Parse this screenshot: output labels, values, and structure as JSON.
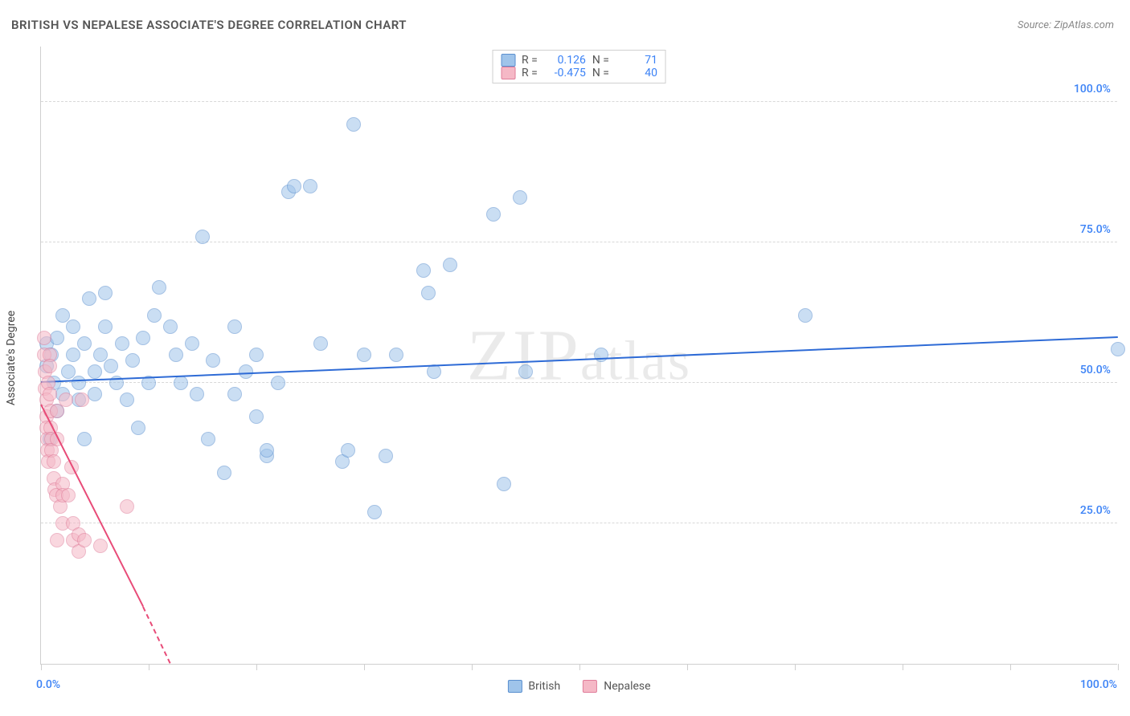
{
  "title": "BRITISH VS NEPALESE ASSOCIATE'S DEGREE CORRELATION CHART",
  "source_label": "Source:",
  "source_value": "ZipAtlas.com",
  "watermark": "ZIPatlas",
  "ylabel": "Associate's Degree",
  "chart": {
    "type": "scatter",
    "xlim": [
      0,
      100
    ],
    "ylim": [
      0,
      110
    ],
    "y_gridlines": [
      25,
      50,
      75,
      100
    ],
    "y_tick_labels": [
      "25.0%",
      "50.0%",
      "75.0%",
      "100.0%"
    ],
    "x_tick_positions": [
      0,
      10,
      20,
      30,
      40,
      50,
      60,
      70,
      80,
      90,
      100
    ],
    "x_min_label": "0.0%",
    "x_max_label": "100.0%",
    "axis_label_color": "#3b82f6",
    "grid_color": "#d8d8d8",
    "background_color": "#ffffff",
    "marker_radius": 9,
    "marker_opacity": 0.55,
    "series": [
      {
        "name": "British",
        "color_fill": "#9fc4ea",
        "color_stroke": "#5a8fcf",
        "R": "0.126",
        "N": "71",
        "trend": {
          "x1": 0,
          "y1": 50,
          "x2": 100,
          "y2": 58,
          "color": "#2e6bd6",
          "width": 2
        },
        "points": [
          [
            0.5,
            53
          ],
          [
            0.5,
            57
          ],
          [
            0.8,
            40
          ],
          [
            1,
            55
          ],
          [
            1.2,
            50
          ],
          [
            1.5,
            58
          ],
          [
            1.5,
            45
          ],
          [
            2,
            62
          ],
          [
            2,
            48
          ],
          [
            2.5,
            52
          ],
          [
            3,
            60
          ],
          [
            3,
            55
          ],
          [
            3.5,
            50
          ],
          [
            3.5,
            47
          ],
          [
            4,
            57
          ],
          [
            4,
            40
          ],
          [
            4.5,
            65
          ],
          [
            5,
            52
          ],
          [
            5,
            48
          ],
          [
            5.5,
            55
          ],
          [
            6,
            66
          ],
          [
            6,
            60
          ],
          [
            6.5,
            53
          ],
          [
            7,
            50
          ],
          [
            7.5,
            57
          ],
          [
            8,
            47
          ],
          [
            8.5,
            54
          ],
          [
            9,
            42
          ],
          [
            9.5,
            58
          ],
          [
            10,
            50
          ],
          [
            10.5,
            62
          ],
          [
            11,
            67
          ],
          [
            12,
            60
          ],
          [
            12.5,
            55
          ],
          [
            13,
            50
          ],
          [
            14,
            57
          ],
          [
            14.5,
            48
          ],
          [
            15,
            76
          ],
          [
            15.5,
            40
          ],
          [
            16,
            54
          ],
          [
            17,
            34
          ],
          [
            18,
            60
          ],
          [
            18,
            48
          ],
          [
            19,
            52
          ],
          [
            20,
            44
          ],
          [
            20,
            55
          ],
          [
            21,
            37
          ],
          [
            21,
            38
          ],
          [
            22,
            50
          ],
          [
            23,
            84
          ],
          [
            23.5,
            85
          ],
          [
            25,
            85
          ],
          [
            26,
            57
          ],
          [
            28,
            36
          ],
          [
            28.5,
            38
          ],
          [
            29,
            96
          ],
          [
            30,
            55
          ],
          [
            31,
            27
          ],
          [
            32,
            37
          ],
          [
            33,
            55
          ],
          [
            35.5,
            70
          ],
          [
            36,
            66
          ],
          [
            36.5,
            52
          ],
          [
            38,
            71
          ],
          [
            42,
            80
          ],
          [
            43,
            32
          ],
          [
            44.5,
            83
          ],
          [
            45,
            52
          ],
          [
            52,
            55
          ],
          [
            71,
            62
          ],
          [
            100,
            56
          ]
        ]
      },
      {
        "name": "Nepalese",
        "color_fill": "#f5b8c6",
        "color_stroke": "#e07d9a",
        "R": "-0.475",
        "N": "40",
        "trend_solid": {
          "x1": 0,
          "y1": 46,
          "x2": 9.5,
          "y2": 10,
          "color": "#e84b78",
          "width": 2
        },
        "trend_dashed": {
          "x1": 9.5,
          "y1": 10,
          "x2": 12,
          "y2": 0,
          "color": "#e84b78",
          "width": 2
        },
        "points": [
          [
            0.3,
            58
          ],
          [
            0.3,
            55
          ],
          [
            0.4,
            52
          ],
          [
            0.4,
            49
          ],
          [
            0.5,
            47
          ],
          [
            0.5,
            44
          ],
          [
            0.5,
            42
          ],
          [
            0.6,
            40
          ],
          [
            0.6,
            38
          ],
          [
            0.7,
            36
          ],
          [
            0.7,
            50
          ],
          [
            0.8,
            55
          ],
          [
            0.8,
            53
          ],
          [
            0.8,
            48
          ],
          [
            0.9,
            45
          ],
          [
            0.9,
            42
          ],
          [
            1.0,
            40
          ],
          [
            1.0,
            38
          ],
          [
            1.2,
            36
          ],
          [
            1.2,
            33
          ],
          [
            1.3,
            31
          ],
          [
            1.4,
            30
          ],
          [
            1.5,
            40
          ],
          [
            1.5,
            45
          ],
          [
            1.5,
            22
          ],
          [
            1.8,
            28
          ],
          [
            2.0,
            32
          ],
          [
            2.0,
            30
          ],
          [
            2.0,
            25
          ],
          [
            2.3,
            47
          ],
          [
            2.5,
            30
          ],
          [
            2.8,
            35
          ],
          [
            3.0,
            22
          ],
          [
            3.0,
            25
          ],
          [
            3.5,
            20
          ],
          [
            3.5,
            23
          ],
          [
            3.8,
            47
          ],
          [
            4.0,
            22
          ],
          [
            5.5,
            21
          ],
          [
            8.0,
            28
          ]
        ]
      }
    ]
  },
  "stats_legend": [
    {
      "swatch_fill": "#9fc4ea",
      "swatch_stroke": "#5a8fcf",
      "R": "0.126",
      "N": "71"
    },
    {
      "swatch_fill": "#f5b8c6",
      "swatch_stroke": "#e07d9a",
      "R": "-0.475",
      "N": "40"
    }
  ],
  "series_legend": [
    {
      "swatch_fill": "#9fc4ea",
      "swatch_stroke": "#5a8fcf",
      "label": "British"
    },
    {
      "swatch_fill": "#f5b8c6",
      "swatch_stroke": "#e07d9a",
      "label": "Nepalese"
    }
  ]
}
